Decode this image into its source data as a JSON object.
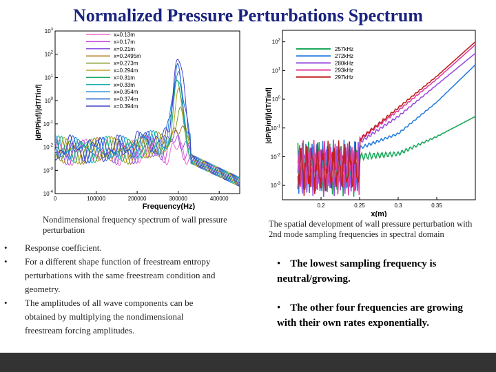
{
  "slide": {
    "title": "Normalized Pressure Perturbations Spectrum",
    "caption_left": "Nondimensional frequency spectrum of wall pressure perturbation",
    "caption_right": "The spatial development of  wall pressure perturbation with 2nd mode sampling frequencies in spectral domain",
    "bullets_left": [
      "Response coefficient.",
      "For a different shape function of freestream entropy perturbations with the same freestream condition and geometry.",
      "The amplitudes of all wave components can be obtained by multiplying the nondimensional freestream forcing amplitudes."
    ],
    "bullets_right": [
      "The lowest sampling frequency is neutral/growing.",
      "The other four frequencies are growing with their own rates exponentially."
    ],
    "bullet_symbol": "•"
  },
  "chart_data": [
    {
      "type": "line",
      "title": "",
      "xlabel": "Frequency(Hz)",
      "ylabel": "|dP/Pinf|/|dT/Tinf|",
      "x_ticks": [
        "0",
        "100000",
        "200000",
        "300000",
        "400000"
      ],
      "y_ticks": [
        "10^-4",
        "10^-3",
        "10^-2",
        "10^-1",
        "10^0",
        "10^1",
        "10^2",
        "10^3"
      ],
      "xlim": [
        0,
        450000
      ],
      "ylim_log10": [
        -4,
        3
      ],
      "series": [
        {
          "name": "x=0.13m",
          "color": "#f06ad0",
          "peak_log10": -2.3
        },
        {
          "name": "x=0.17m",
          "color": "#c04cd8",
          "peak_log10": -1.9
        },
        {
          "name": "x=0.21m",
          "color": "#8a4fe0",
          "peak_log10": -1.5
        },
        {
          "name": "x=0.2495m",
          "color": "#b07a1c",
          "peak_log10": -1.0
        },
        {
          "name": "x=0.273m",
          "color": "#7a9a1a",
          "peak_log10": -0.6
        },
        {
          "name": "x=0.294m",
          "color": "#c0a020",
          "peak_log10": -0.1
        },
        {
          "name": "x=0.31m",
          "color": "#1aa864",
          "peak_log10": 0.3
        },
        {
          "name": "x=0.33m",
          "color": "#18b0b0",
          "peak_log10": 0.7
        },
        {
          "name": "x=0.354m",
          "color": "#1e8ad8",
          "peak_log10": 1.1
        },
        {
          "name": "x=0.374m",
          "color": "#2060d0",
          "peak_log10": 1.5
        },
        {
          "name": "x=0.394m",
          "color": "#4040c8",
          "peak_log10": 1.9
        }
      ],
      "peak_frequency_hz": 300000
    },
    {
      "type": "line",
      "title": "",
      "xlabel": "x(m)",
      "ylabel": "|dP/Pinf|/|dT/Tinf|",
      "x_ticks": [
        "0.2",
        "0.25",
        "0.3",
        "0.35"
      ],
      "y_ticks": [
        "10^-3",
        "10^-2",
        "10^-1",
        "10^0",
        "10^1",
        "10^2"
      ],
      "xlim": [
        0.15,
        0.4
      ],
      "ylim_log10": [
        -3.5,
        2.4
      ],
      "series": [
        {
          "name": "257kHz",
          "color": "#1aa85a",
          "x": [
            0.25,
            0.3,
            0.35,
            0.4
          ],
          "y_log10": [
            -2.0,
            -1.9,
            -1.3,
            -0.6
          ]
        },
        {
          "name": "272kHz",
          "color": "#2a7fe0",
          "x": [
            0.25,
            0.3,
            0.35,
            0.4
          ],
          "y_log10": [
            -1.7,
            -1.2,
            -0.1,
            1.2
          ]
        },
        {
          "name": "280kHz",
          "color": "#9a4fe0",
          "x": [
            0.25,
            0.3,
            0.35,
            0.4
          ],
          "y_log10": [
            -1.5,
            -0.6,
            0.5,
            1.6
          ]
        },
        {
          "name": "293kHz",
          "color": "#e040a0",
          "x": [
            0.25,
            0.3,
            0.35,
            0.4
          ],
          "y_log10": [
            -1.4,
            -0.4,
            0.7,
            1.9
          ]
        },
        {
          "name": "297kHz",
          "color": "#c02020",
          "x": [
            0.25,
            0.3,
            0.35,
            0.4
          ],
          "y_log10": [
            -1.4,
            -0.3,
            0.8,
            2.0
          ]
        }
      ]
    }
  ]
}
